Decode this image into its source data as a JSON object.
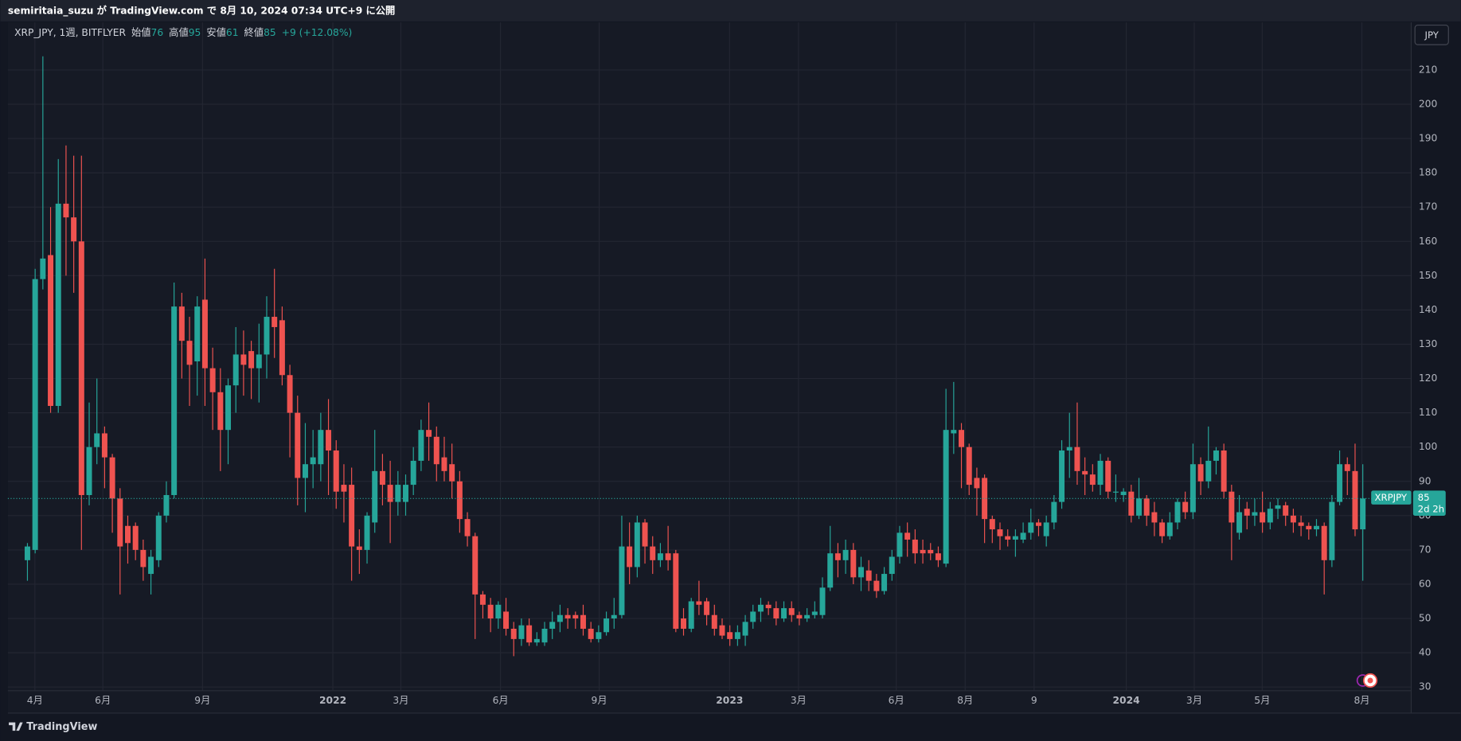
{
  "header": {
    "published": "semiritaia_suzu が TradingView.com で 8月 10, 2024 07:34 UTC+9 に公開"
  },
  "currency_button": "JPY",
  "footer": {
    "brand": "TradingView"
  },
  "chart_data": {
    "type": "candlestick",
    "symbol": "XRP_JPY, 1週, BITFLYER",
    "legend_labels": {
      "open": "始値",
      "high": "高値",
      "low": "安値",
      "close": "終値"
    },
    "change_label": "+9 (+12.08%)",
    "symbol_label": "XRPJPY",
    "countdown": "2d 2h",
    "up_color": "#26a69a",
    "down_color": "#ef5350",
    "grid": true,
    "xtick_labels": [
      "4月",
      "6月",
      "9月",
      "2022",
      "3月",
      "6月",
      "9月",
      "2023",
      "3月",
      "6月",
      "8月",
      "9",
      "2024",
      "3月",
      "5月",
      "8月"
    ],
    "ylim": [
      22.4,
      223.9
    ],
    "yticks": [
      30,
      40,
      50,
      60,
      70,
      80,
      90,
      100,
      110,
      120,
      130,
      140,
      150,
      160,
      170,
      180,
      190,
      200,
      210
    ],
    "open": [
      67,
      70,
      149,
      156,
      112,
      171,
      167,
      160,
      86,
      100,
      104,
      97,
      85,
      77,
      77,
      70,
      63,
      67,
      80,
      86,
      141,
      131,
      125,
      143,
      123,
      116,
      105,
      118,
      127,
      128,
      123,
      127,
      138,
      137,
      121,
      110,
      91,
      95,
      95,
      105,
      99,
      89,
      89,
      71,
      70,
      78,
      93,
      89,
      84,
      84,
      89,
      96,
      105,
      103,
      97,
      95,
      90,
      79,
      74,
      57,
      54,
      50,
      52,
      47,
      44,
      48,
      43,
      43,
      47,
      49,
      51,
      51,
      51,
      47,
      44,
      46,
      50,
      51,
      71,
      65,
      78,
      71,
      67,
      69,
      69,
      50,
      47,
      55,
      55,
      51,
      48,
      46,
      44,
      45,
      49,
      52,
      54,
      53,
      50,
      53,
      51,
      50,
      51,
      51,
      59,
      69,
      67,
      70,
      62,
      64,
      61,
      58,
      63,
      68,
      75,
      73,
      70,
      70,
      69,
      66,
      104,
      105,
      100,
      91,
      91,
      79,
      76,
      74,
      73,
      73,
      75,
      78,
      74,
      78,
      84,
      99,
      100,
      93,
      92,
      89,
      96,
      87,
      86,
      87,
      80,
      85,
      81,
      78,
      74,
      78,
      84,
      81,
      95,
      90,
      96,
      99,
      87,
      75,
      82,
      80,
      81,
      78,
      82,
      83,
      80,
      78,
      77,
      76,
      77,
      67,
      84,
      95,
      93,
      76
    ],
    "high": [
      72,
      152,
      214,
      170,
      184,
      188,
      185,
      185,
      113,
      120,
      106,
      98,
      88,
      80,
      78,
      73,
      70,
      81,
      90,
      148,
      145,
      138,
      144,
      155,
      129,
      123,
      120,
      135,
      134,
      131,
      136,
      144,
      152,
      141,
      124,
      115,
      107,
      105,
      110,
      114,
      102,
      95,
      94,
      76,
      81,
      105,
      98,
      96,
      93,
      92,
      100,
      108,
      113,
      106,
      103,
      101,
      93,
      81,
      75,
      58,
      56,
      55,
      56,
      49,
      50,
      50,
      46,
      49,
      52,
      54,
      53,
      52,
      54,
      49,
      48,
      52,
      56,
      80,
      78,
      80,
      79,
      74,
      72,
      77,
      70,
      53,
      56,
      61,
      56,
      54,
      50,
      48,
      48,
      51,
      54,
      56,
      55,
      55,
      55,
      55,
      52,
      53,
      55,
      62,
      77,
      72,
      73,
      72,
      68,
      67,
      63,
      65,
      70,
      77,
      78,
      76,
      73,
      72,
      71,
      117,
      119,
      107,
      101,
      94,
      92,
      80,
      78,
      76,
      76,
      78,
      82,
      79,
      80,
      86,
      102,
      110,
      113,
      97,
      95,
      98,
      97,
      92,
      88,
      89,
      91,
      86,
      84,
      79,
      81,
      85,
      87,
      101,
      97,
      106,
      100,
      101,
      89,
      86,
      84,
      85,
      87,
      84,
      85,
      84,
      82,
      80,
      78,
      79,
      78,
      86,
      99,
      97,
      101,
      95
    ],
    "low": [
      61,
      69,
      146,
      110,
      110,
      150,
      145,
      70,
      83,
      95,
      88,
      75,
      57,
      66,
      67,
      61,
      57,
      65,
      78,
      85,
      120,
      112,
      115,
      112,
      105,
      93,
      95,
      110,
      115,
      114,
      113,
      120,
      126,
      118,
      97,
      83,
      81,
      88,
      90,
      86,
      82,
      78,
      61,
      63,
      66,
      75,
      83,
      72,
      80,
      80,
      86,
      93,
      96,
      90,
      90,
      85,
      75,
      71,
      44,
      50,
      46,
      47,
      45,
      39,
      42,
      42,
      42,
      42,
      44,
      46,
      47,
      47,
      45,
      43,
      43,
      45,
      47,
      50,
      60,
      62,
      66,
      63,
      65,
      64,
      46,
      45,
      46,
      51,
      48,
      45,
      44,
      42,
      42,
      42,
      47,
      49,
      51,
      48,
      49,
      49,
      48,
      49,
      50,
      50,
      58,
      62,
      63,
      60,
      58,
      58,
      56,
      57,
      61,
      66,
      68,
      66,
      66,
      67,
      65,
      65,
      98,
      88,
      86,
      80,
      72,
      72,
      70,
      71,
      68,
      72,
      73,
      74,
      71,
      76,
      82,
      91,
      89,
      86,
      87,
      86,
      85,
      84,
      84,
      78,
      79,
      77,
      74,
      72,
      73,
      76,
      79,
      79,
      86,
      88,
      92,
      85,
      67,
      73,
      76,
      77,
      75,
      76,
      79,
      77,
      75,
      74,
      73,
      74,
      57,
      65,
      83,
      86,
      74,
      61
    ],
    "close": [
      71,
      149,
      155,
      112,
      171,
      167,
      160,
      86,
      100,
      104,
      97,
      85,
      71,
      72,
      70,
      65,
      68,
      80,
      86,
      141,
      131,
      124,
      141,
      123,
      116,
      105,
      118,
      127,
      124,
      123,
      127,
      138,
      135,
      121,
      110,
      91,
      95,
      97,
      105,
      99,
      87,
      87,
      71,
      70,
      80,
      93,
      89,
      84,
      89,
      89,
      96,
      105,
      103,
      95,
      93,
      90,
      79,
      74,
      57,
      54,
      50,
      54,
      47,
      44,
      48,
      43,
      44,
      47,
      49,
      51,
      50,
      50,
      47,
      44,
      46,
      50,
      51,
      71,
      65,
      78,
      71,
      67,
      69,
      67,
      47,
      47,
      55,
      54,
      51,
      47,
      45,
      44,
      46,
      49,
      52,
      54,
      53,
      50,
      53,
      51,
      50,
      51,
      52,
      59,
      69,
      67,
      70,
      62,
      65,
      61,
      58,
      63,
      68,
      75,
      73,
      69,
      69,
      69,
      67,
      105,
      105,
      100,
      89,
      88,
      79,
      76,
      74,
      73,
      74,
      75,
      78,
      77,
      78,
      84,
      99,
      100,
      93,
      92,
      89,
      96,
      87,
      87,
      87,
      80,
      85,
      80,
      78,
      74,
      78,
      84,
      81,
      95,
      90,
      96,
      99,
      87,
      78,
      81,
      80,
      81,
      78,
      82,
      83,
      80,
      78,
      77,
      76,
      77,
      67,
      84,
      95,
      93,
      76,
      85
    ]
  }
}
